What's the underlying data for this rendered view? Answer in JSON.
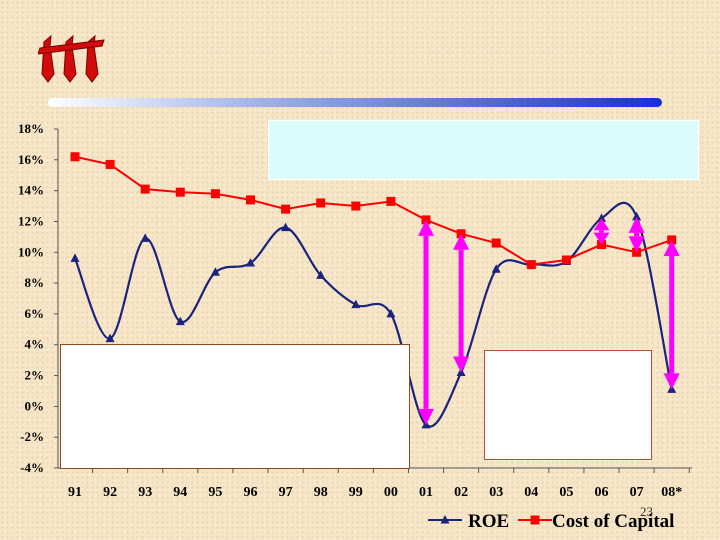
{
  "slide": {
    "page_number": "23"
  },
  "chart_data": {
    "type": "line",
    "categories": [
      "91",
      "92",
      "93",
      "94",
      "95",
      "96",
      "97",
      "98",
      "99",
      "00",
      "01",
      "02",
      "03",
      "04",
      "05",
      "06",
      "07",
      "08*"
    ],
    "ylim": [
      -0.04,
      0.18
    ],
    "yticks": [
      {
        "value": 0.18,
        "label": "18%"
      },
      {
        "value": 0.16,
        "label": "16%"
      },
      {
        "value": 0.14,
        "label": "14%"
      },
      {
        "value": 0.12,
        "label": "12%"
      },
      {
        "value": 0.1,
        "label": "10%"
      },
      {
        "value": 0.08,
        "label": "8%"
      },
      {
        "value": 0.06,
        "label": "6%"
      },
      {
        "value": 0.04,
        "label": "4%"
      },
      {
        "value": 0.02,
        "label": "2%"
      },
      {
        "value": 0.0,
        "label": "0%"
      },
      {
        "value": -0.02,
        "label": "-2%"
      },
      {
        "value": -0.04,
        "label": "-4%"
      }
    ],
    "grid": false,
    "legend": "bottom-right",
    "series": [
      {
        "name": "ROE",
        "color": "#1a237e",
        "marker": "triangle",
        "values": [
          0.096,
          0.044,
          0.109,
          0.055,
          0.087,
          0.093,
          0.116,
          0.085,
          0.066,
          0.06,
          -0.012,
          0.022,
          0.089,
          0.092,
          0.094,
          0.122,
          0.123,
          0.011
        ]
      },
      {
        "name": "Cost of Capital",
        "color": "#ff0000",
        "marker": "square",
        "values": [
          0.162,
          0.157,
          0.141,
          0.139,
          0.138,
          0.134,
          0.128,
          0.132,
          0.13,
          0.133,
          0.121,
          0.112,
          0.106,
          0.092,
          0.095,
          0.105,
          0.1,
          0.108
        ]
      }
    ],
    "spread_arrows": [
      {
        "category": "01",
        "from": -0.012,
        "to": 0.121
      },
      {
        "category": "02",
        "from": 0.022,
        "to": 0.112
      },
      {
        "category": "06",
        "from": 0.105,
        "to": 0.122
      },
      {
        "category": "07",
        "from": 0.1,
        "to": 0.123
      },
      {
        "category": "08*",
        "from": 0.011,
        "to": 0.108
      }
    ],
    "arrow_color": "#ff00ff"
  }
}
